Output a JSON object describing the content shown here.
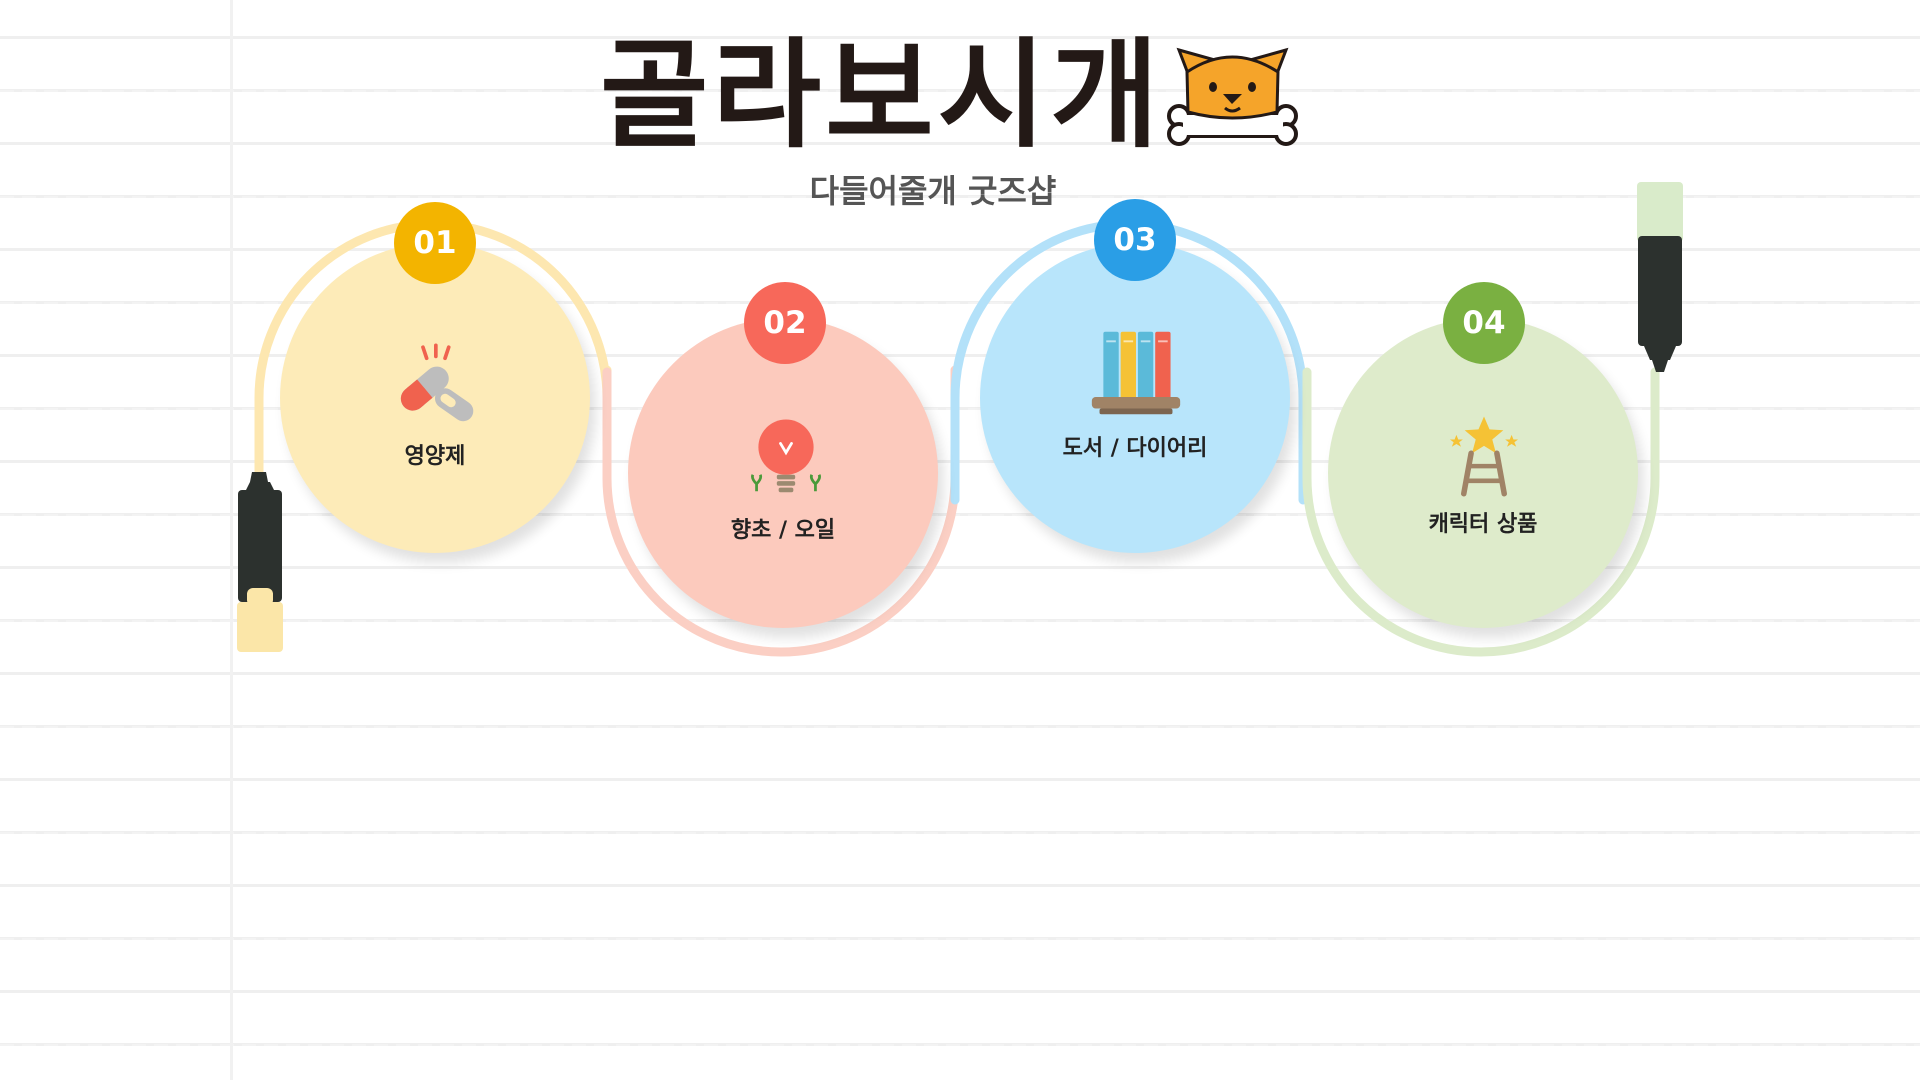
{
  "header": {
    "title": "골라보시개",
    "subtitle": "다들어줄개 굿즈샵"
  },
  "steps": [
    {
      "number": "01",
      "label": "영양제",
      "icon": "capsule-pill-icon",
      "color": "#f3b400",
      "bg": "#fdebb8",
      "arc": "#fde7b0"
    },
    {
      "number": "02",
      "label": "향초 / 오일",
      "icon": "lightbulb-sprout-icon",
      "color": "#f7685a",
      "bg": "#fccabd",
      "arc": "#fbcfc4"
    },
    {
      "number": "03",
      "label": "도서 / 다이어리",
      "icon": "books-on-shelf-icon",
      "color": "#2a9ee6",
      "bg": "#b8e5fb",
      "arc": "#b3e1f9"
    },
    {
      "number": "04",
      "label": "캐릭터 상품",
      "icon": "star-ladder-icon",
      "color": "#7ab041",
      "bg": "#deebcb",
      "arc": "#dcebca"
    }
  ],
  "colors": {
    "title": "#231916",
    "marker_body": "#2c312e"
  }
}
